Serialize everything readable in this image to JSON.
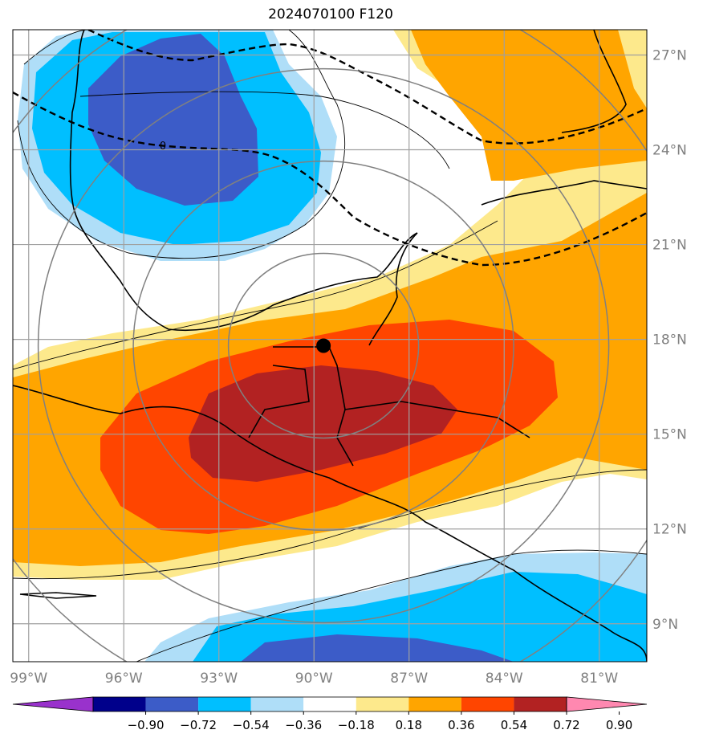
{
  "title": "2024070100 F120",
  "map": {
    "lon_range": [
      -99.5,
      -79.5
    ],
    "lat_range": [
      7.8,
      27.8
    ],
    "lon_ticks": [
      {
        "value": -99,
        "label": "99°W"
      },
      {
        "value": -96,
        "label": "96°W"
      },
      {
        "value": -93,
        "label": "93°W"
      },
      {
        "value": -90,
        "label": "90°W"
      },
      {
        "value": -87,
        "label": "87°W"
      },
      {
        "value": -84,
        "label": "84°W"
      },
      {
        "value": -81,
        "label": "81°W"
      }
    ],
    "lat_ticks": [
      {
        "value": 9,
        "label": "9°N"
      },
      {
        "value": 12,
        "label": "12°N"
      },
      {
        "value": 15,
        "label": "15°N"
      },
      {
        "value": 18,
        "label": "18°N"
      },
      {
        "value": 21,
        "label": "21°N"
      },
      {
        "value": 24,
        "label": "24°N"
      },
      {
        "value": 27,
        "label": "27°N"
      }
    ],
    "grid": true,
    "storm_center": {
      "lon": -89.7,
      "lat": 17.8
    },
    "range_rings_deg": [
      3,
      6,
      9,
      12
    ],
    "contour_label": "0",
    "fill_colors": {
      "neg_090": "#3c5cc8",
      "neg_054": "#00bfff",
      "neg_036": "#afdef8",
      "pos_018": "#fde98c",
      "pos_036": "#ffa500",
      "pos_054": "#ff4500",
      "pos_072": "#b22222"
    }
  },
  "colorbar": {
    "ticks": [
      "−0.90",
      "−0.72",
      "−0.54",
      "−0.36",
      "−0.18",
      "0.18",
      "0.36",
      "0.54",
      "0.72",
      "0.90"
    ],
    "colors": [
      "#9932cc",
      "#00008b",
      "#3c5cc8",
      "#00bfff",
      "#afdef8",
      "#ffffff",
      "#fde98c",
      "#ffa500",
      "#ff4500",
      "#b22222",
      "#ff88b0"
    ]
  }
}
